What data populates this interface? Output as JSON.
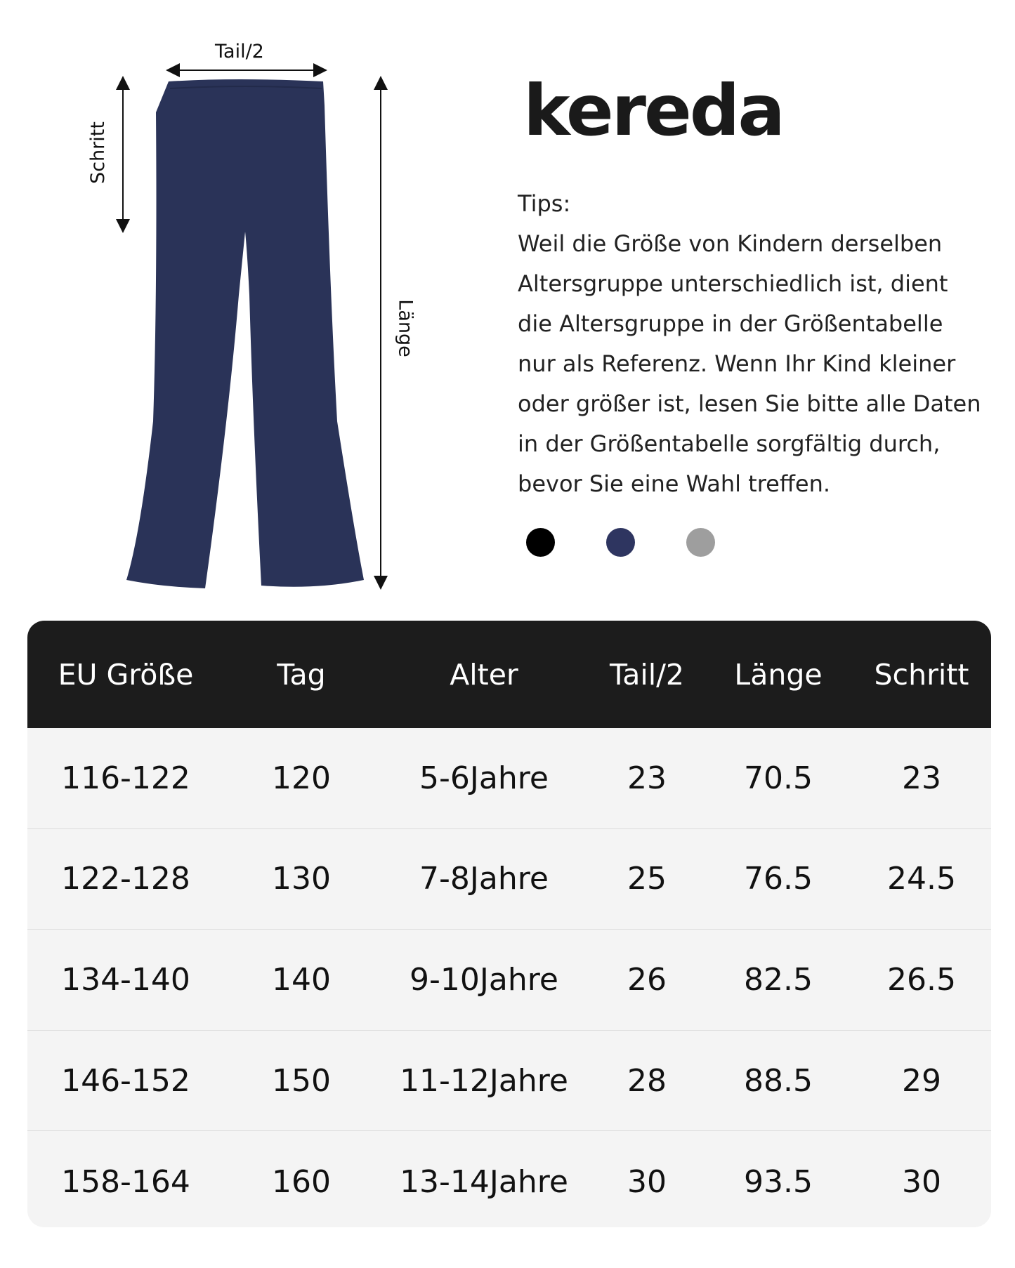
{
  "diagram": {
    "labels": {
      "waist": "Tail/2",
      "inseam": "Schritt",
      "length": "Länge"
    },
    "garment_color": "#2a3358"
  },
  "brand": {
    "logo": "kereda"
  },
  "tips": {
    "title": "Tips:",
    "lines": [
      "Weil die Größe von Kindern derselben",
      "Altersgruppe unterschiedlich ist, dient",
      "die Altersgruppe in der Größentabelle",
      "nur als Referenz. Wenn Ihr Kind kleiner",
      "oder größer ist, lesen Sie bitte alle Daten",
      "in der Größentabelle sorgfältig durch,",
      "bevor Sie eine Wahl treffen."
    ]
  },
  "colors": [
    "#000000",
    "#2e3560",
    "#9e9e9e"
  ],
  "table": {
    "headers": [
      "EU Größe",
      "Tag",
      "Alter",
      "Tail/2",
      "Länge",
      "Schritt"
    ],
    "rows": [
      [
        "116-122",
        "120",
        "5-6Jahre",
        "23",
        "70.5",
        "23"
      ],
      [
        "122-128",
        "130",
        "7-8Jahre",
        "25",
        "76.5",
        "24.5"
      ],
      [
        "134-140",
        "140",
        "9-10Jahre",
        "26",
        "82.5",
        "26.5"
      ],
      [
        "146-152",
        "150",
        "11-12Jahre",
        "28",
        "88.5",
        "29"
      ],
      [
        "158-164",
        "160",
        "13-14Jahre",
        "30",
        "93.5",
        "30"
      ]
    ]
  }
}
